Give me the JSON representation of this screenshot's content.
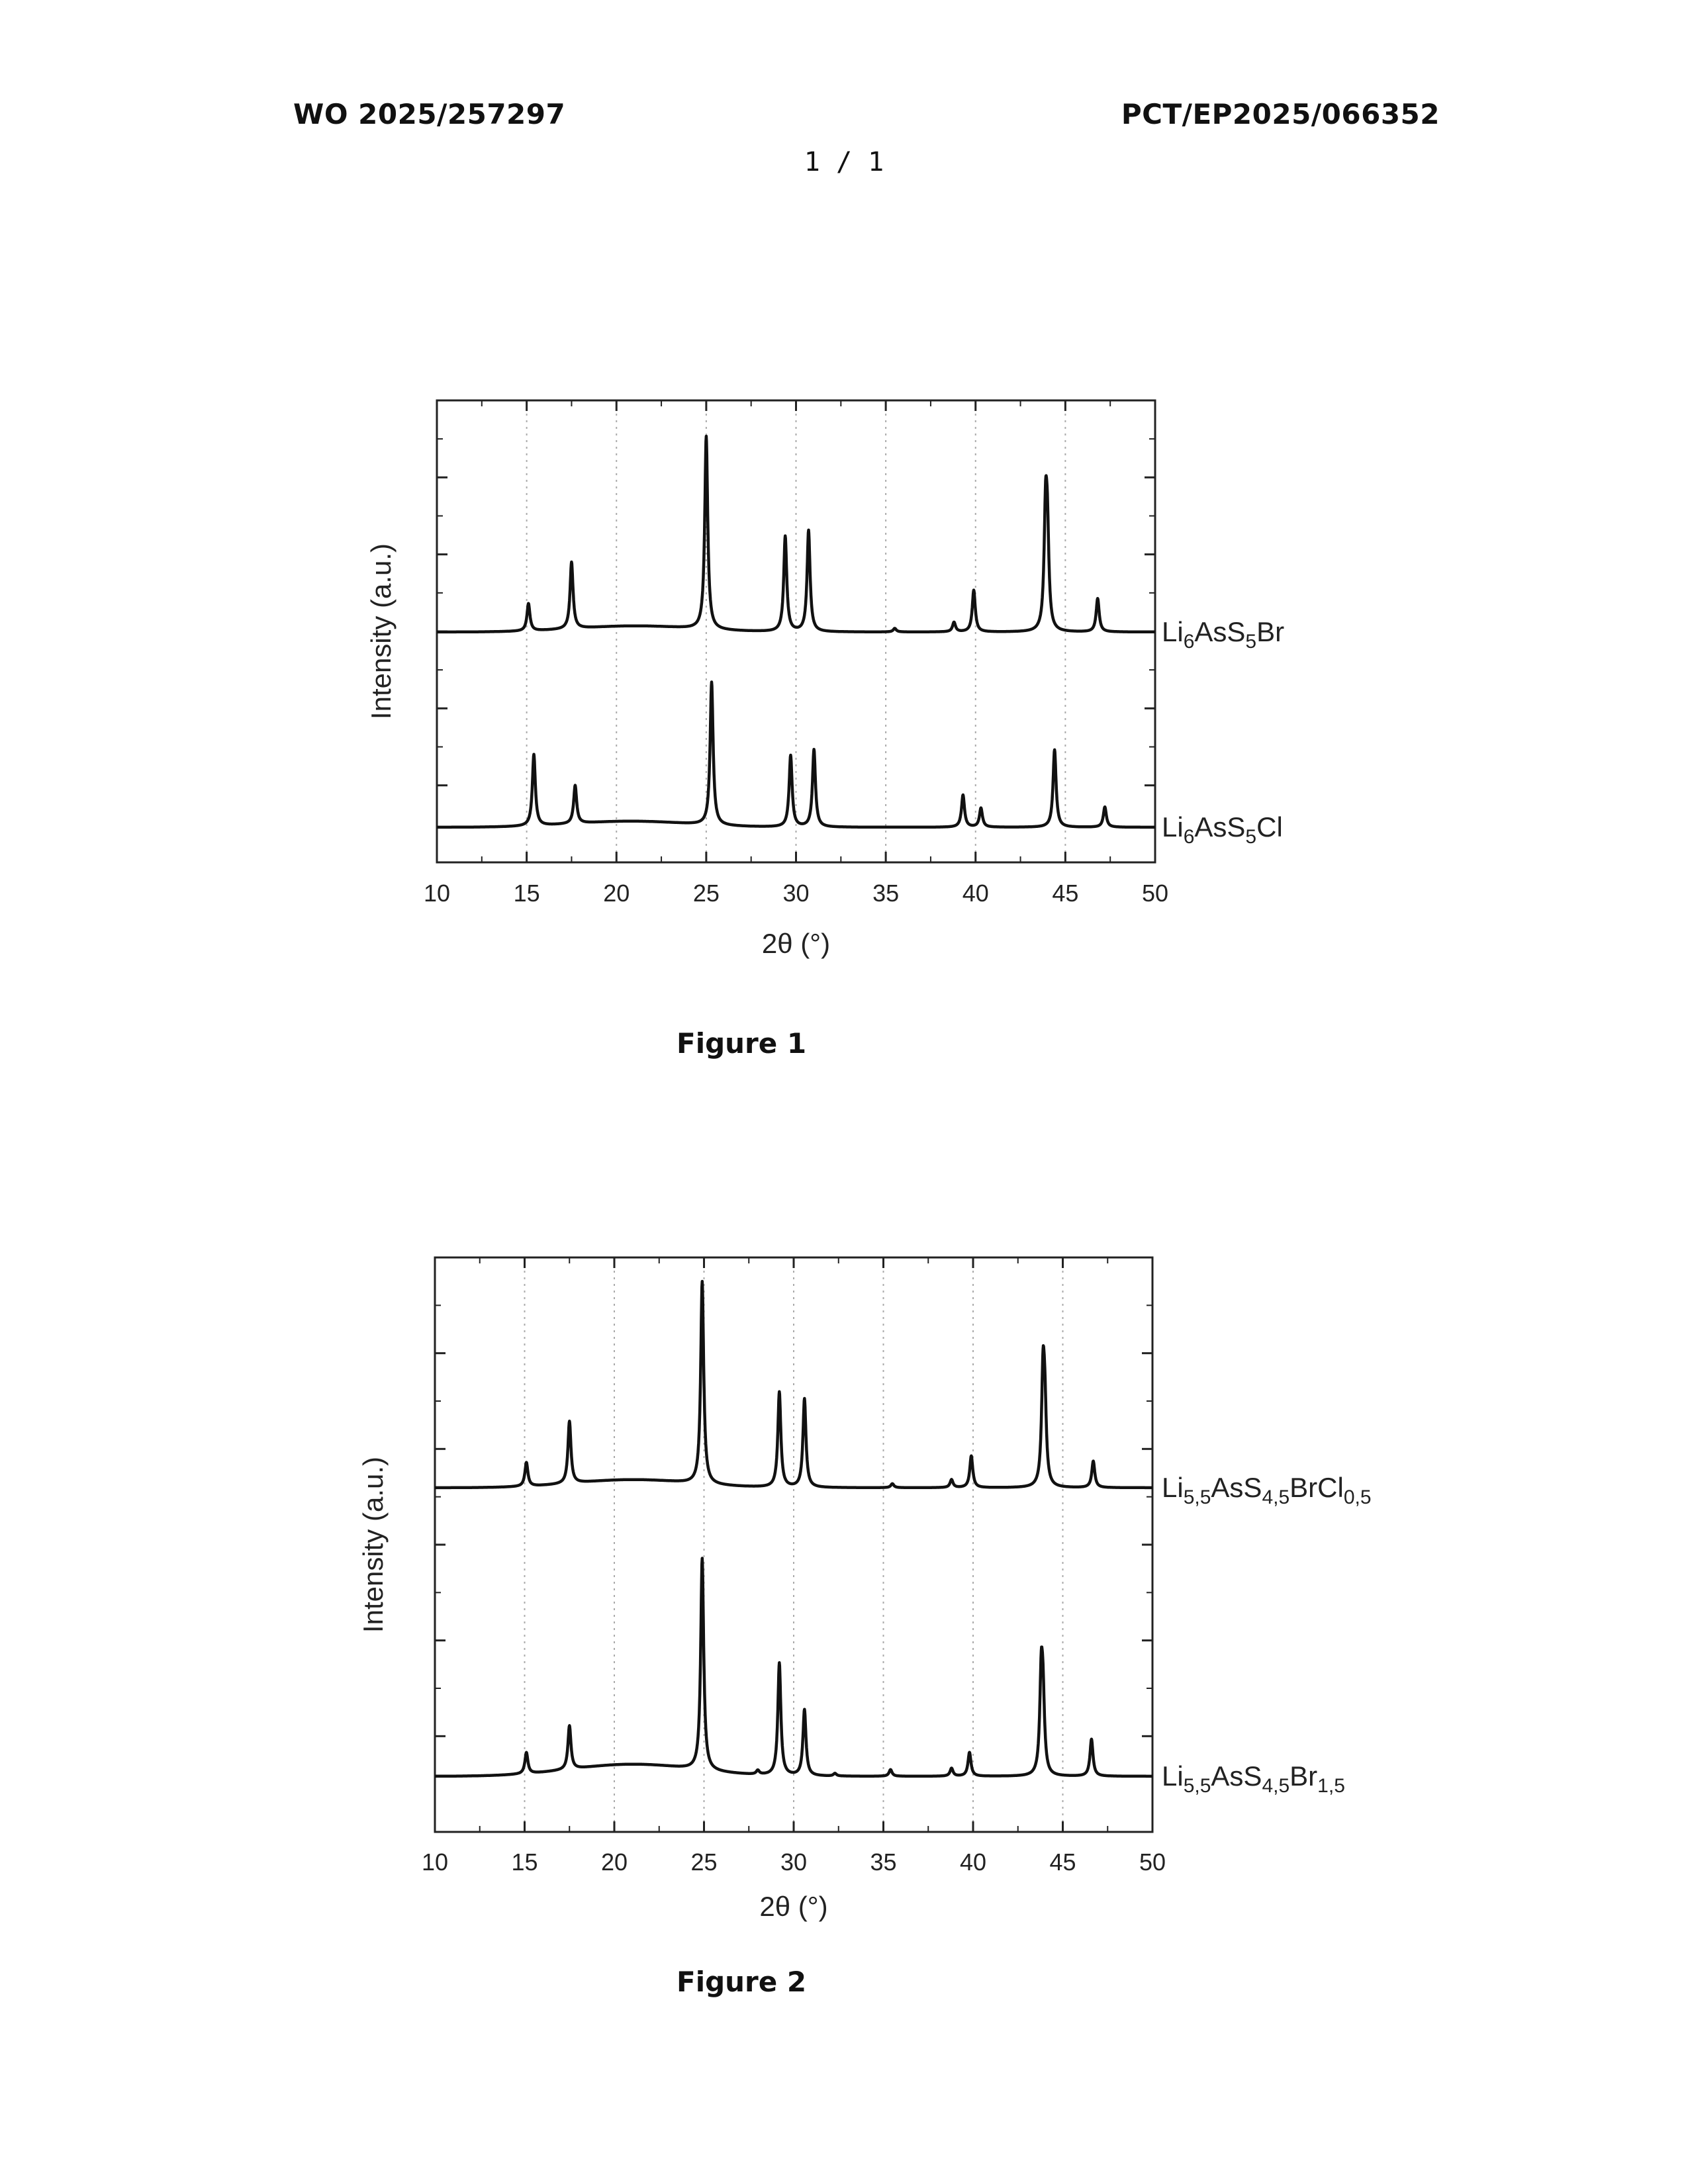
{
  "header": {
    "left": "WO 2025/257297",
    "right": "PCT/EP2025/066352",
    "page": "1 / 1"
  },
  "captions": {
    "figure1": "Figure 1",
    "figure2": "Figure 2"
  },
  "chart_data": [
    {
      "type": "line",
      "title": "",
      "xlabel": "2θ (°)",
      "ylabel": "Intensity (a.u.)",
      "xlim": [
        10,
        50
      ],
      "xticks": [
        "10",
        "15",
        "20",
        "25",
        "30",
        "35",
        "40",
        "45",
        "50"
      ],
      "grid": "vertical dotted",
      "yticks_labeled": false,
      "series": [
        {
          "name": "Li6AsS5Br",
          "label": {
            "base": "Li",
            "sub1": "6",
            "mid": "AsS",
            "sub2": "5",
            "tail": "Br"
          },
          "color": "#111111",
          "hump": {
            "center": 21,
            "width": 3.2,
            "height": 0.05
          },
          "peaks": [
            [
              15.1,
              0.23
            ],
            [
              17.5,
              0.56
            ],
            [
              25.0,
              1.62
            ],
            [
              29.4,
              0.8
            ],
            [
              30.7,
              0.85
            ],
            [
              35.5,
              0.03
            ],
            [
              38.8,
              0.08
            ],
            [
              39.9,
              0.35
            ],
            [
              43.9,
              0.92
            ],
            [
              44.0,
              0.7
            ],
            [
              46.8,
              0.28
            ]
          ]
        },
        {
          "name": "Li6AsS5Cl",
          "label": {
            "base": "Li",
            "sub1": "6",
            "mid": "AsS",
            "sub2": "5",
            "tail": "Cl"
          },
          "color": "#111111",
          "hump": {
            "center": 20.8,
            "width": 3.2,
            "height": 0.05
          },
          "peaks": [
            [
              15.4,
              0.6
            ],
            [
              17.7,
              0.32
            ],
            [
              25.3,
              1.2
            ],
            [
              29.7,
              0.6
            ],
            [
              31.0,
              0.65
            ],
            [
              39.3,
              0.27
            ],
            [
              40.3,
              0.16
            ],
            [
              44.4,
              0.65
            ],
            [
              47.2,
              0.17
            ]
          ]
        }
      ]
    },
    {
      "type": "line",
      "title": "",
      "xlabel": "2θ (°)",
      "ylabel": "Intensity (a.u.)",
      "xlim": [
        10,
        50
      ],
      "xticks": [
        "10",
        "15",
        "20",
        "25",
        "30",
        "35",
        "40",
        "45",
        "50"
      ],
      "grid": "vertical dotted",
      "yticks_labeled": false,
      "series": [
        {
          "name": "Li5,5AsS4,5BrCl0,5",
          "label": {
            "base": "Li",
            "sub1": "5,5",
            "mid": "AsS",
            "sub2": "4,5",
            "tail": "BrCl",
            "sub3": "0,5"
          },
          "color": "#111111",
          "hump": {
            "center": 21,
            "width": 3.2,
            "height": 0.06
          },
          "peaks": [
            [
              15.1,
              0.18
            ],
            [
              17.5,
              0.47
            ],
            [
              24.9,
              1.53
            ],
            [
              29.2,
              0.72
            ],
            [
              30.6,
              0.67
            ],
            [
              35.5,
              0.03
            ],
            [
              38.8,
              0.06
            ],
            [
              39.9,
              0.24
            ],
            [
              43.9,
              0.8
            ],
            [
              44.0,
              0.5
            ],
            [
              46.7,
              0.2
            ]
          ]
        },
        {
          "name": "Li5,5AsS4,5Br1,5",
          "label": {
            "base": "Li",
            "sub1": "5,5",
            "mid": "AsS",
            "sub2": "4,5",
            "tail": "Br",
            "sub3": "1,5"
          },
          "color": "#111111",
          "hump": {
            "center": 21,
            "width": 3.4,
            "height": 0.09
          },
          "peaks": [
            [
              15.1,
              0.16
            ],
            [
              17.5,
              0.33
            ],
            [
              24.9,
              1.6
            ],
            [
              28.0,
              0.03
            ],
            [
              29.2,
              0.85
            ],
            [
              30.6,
              0.5
            ],
            [
              32.3,
              0.02
            ],
            [
              35.4,
              0.05
            ],
            [
              38.8,
              0.06
            ],
            [
              39.8,
              0.18
            ],
            [
              43.8,
              0.7
            ],
            [
              43.9,
              0.5
            ],
            [
              46.6,
              0.28
            ]
          ]
        }
      ]
    }
  ]
}
